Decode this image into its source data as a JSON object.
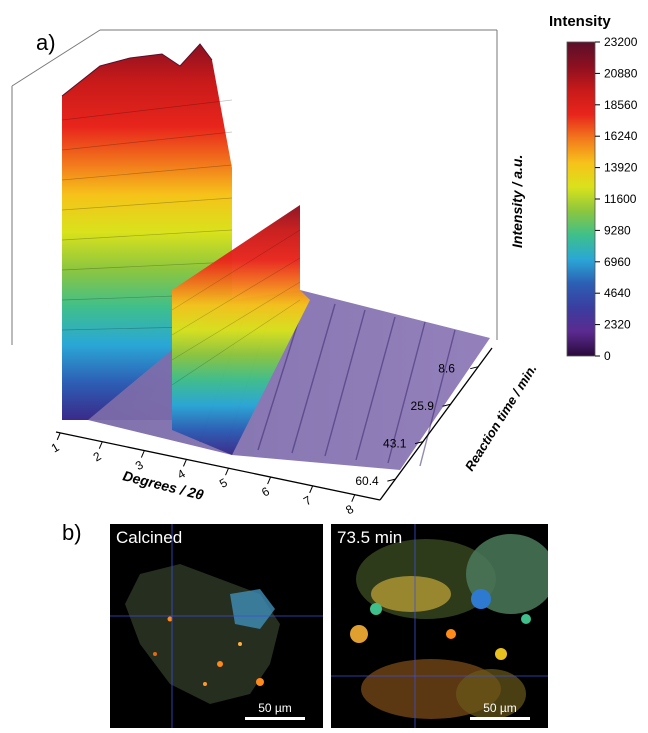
{
  "panel_a_letter": "a)",
  "panel_b_letter": "b)",
  "colorbar": {
    "title": "Intensity",
    "ticks": [
      "23200",
      "20880",
      "18560",
      "16240",
      "13920",
      "11600",
      "9280",
      "6960",
      "4640",
      "2320",
      "0"
    ],
    "stops": [
      "#5a0f2a",
      "#8b1020",
      "#c81a1a",
      "#e8251c",
      "#f27a1c",
      "#f6c21a",
      "#d9e21c",
      "#8cc63f",
      "#3fbf8c",
      "#2aa7d6",
      "#2c5fb5",
      "#3a3ea0",
      "#5b2a8f",
      "#2a0a3a"
    ]
  },
  "chart_data": {
    "type": "area",
    "title": "",
    "xlabel": "Degrees / 2θ",
    "ylabel": "Reaction time / min.",
    "zlabel": "Intensity / a.u.",
    "x_ticks": [
      "1",
      "2",
      "3",
      "4",
      "5",
      "6",
      "7",
      "8"
    ],
    "y_ticks": [
      "8.6",
      "25.9",
      "43.1",
      "60.4"
    ],
    "xlim": [
      0.9,
      8.6
    ],
    "ylim": [
      0,
      70
    ],
    "zlim": [
      0,
      23200
    ],
    "color_scale": "intensity",
    "peaks": [
      {
        "two_theta": 1.8,
        "intensity_max": 23200,
        "intensity_at_late_time": 15000
      },
      {
        "two_theta": 4.2,
        "intensity_max": 9500,
        "intensity_at_late_time": 9500
      }
    ],
    "background_intensity": 1800
  },
  "micrographs": [
    {
      "label": "Calcined",
      "scale_label": "50 µm"
    },
    {
      "label": "73.5 min",
      "scale_label": "50 µm"
    }
  ]
}
